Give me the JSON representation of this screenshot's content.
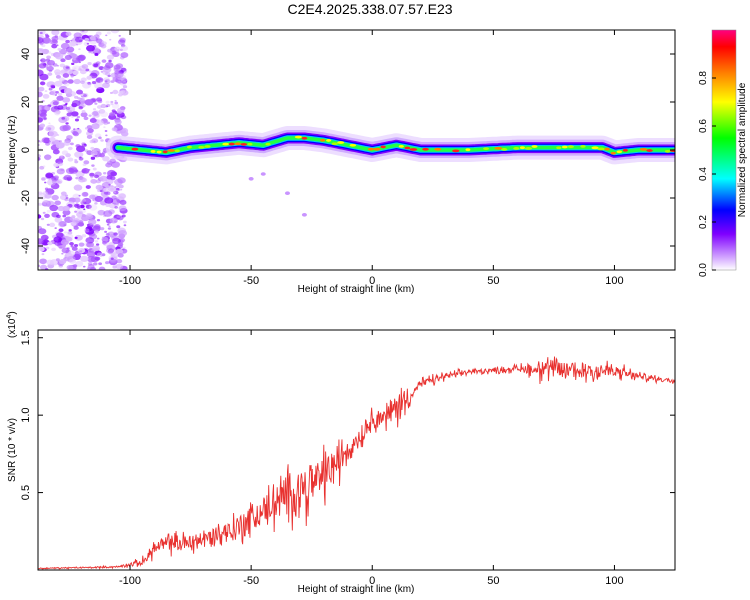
{
  "page_title": "C2E4.2025.338.07.57.E23",
  "chart_data": [
    {
      "type": "heatmap",
      "xlabel": "Height of straight line (km)",
      "ylabel": "Frequency (Hz)",
      "xlim": [
        -138,
        125
      ],
      "ylim": [
        -50,
        50
      ],
      "x_ticks": [
        -100,
        -50,
        0,
        50,
        100
      ],
      "x_tick_labels": [
        "-100",
        "-50",
        "0",
        "50",
        "100"
      ],
      "y_ticks": [
        -40,
        -20,
        0,
        20,
        40
      ],
      "y_tick_labels": [
        "-40",
        "-20",
        "0",
        "20",
        "40"
      ],
      "grid": false,
      "colorbar": {
        "label": "Normalized spectral amplitude",
        "range": [
          0,
          1
        ],
        "ticks": [
          0.0,
          0.2,
          0.4,
          0.6,
          0.8
        ],
        "tick_labels": [
          "0.0",
          "0.2",
          "0.4",
          "0.6",
          "0.8"
        ],
        "colors": [
          "#ffffff",
          "#cc99ff",
          "#7f00ff",
          "#0000ff",
          "#00ffff",
          "#00ff00",
          "#ffff00",
          "#ff8000",
          "#ff0000",
          "#ff0080"
        ]
      },
      "noise_region_x": [
        -138,
        -105
      ],
      "trace": {
        "x": [
          -105,
          -95,
          -85,
          -75,
          -65,
          -55,
          -45,
          -35,
          -28,
          -20,
          -10,
          0,
          10,
          20,
          40,
          60,
          80,
          95,
          100,
          110,
          125
        ],
        "y": [
          1,
          0,
          -1,
          1,
          2,
          3,
          2,
          5,
          5,
          4,
          2,
          0,
          2,
          0,
          0,
          1,
          1,
          1,
          -1,
          0,
          0
        ]
      }
    },
    {
      "type": "line",
      "xlabel": "Height of straight line (km)",
      "ylabel": "SNR (10 * v/v)",
      "y_multiplier": "(x10",
      "y_multiplier_exp": "4",
      "y_multiplier_close": ")",
      "xlim": [
        -138,
        125
      ],
      "ylim": [
        0,
        1.55
      ],
      "x_ticks": [
        -100,
        -50,
        0,
        50,
        100
      ],
      "x_tick_labels": [
        "-100",
        "-50",
        "0",
        "50",
        "100"
      ],
      "y_ticks": [
        0.5,
        1.0,
        1.5
      ],
      "y_tick_labels": [
        "0.5",
        "1.0",
        "1.5"
      ],
      "grid": false,
      "series": [
        {
          "color": "#e8312f",
          "envelope": {
            "x": [
              -138,
              -105,
              -95,
              -90,
              -85,
              -75,
              -65,
              -55,
              -45,
              -35,
              -25,
              -15,
              -5,
              0,
              5,
              10,
              15,
              20,
              30,
              40,
              50,
              60,
              70,
              80,
              90,
              100,
              110,
              120,
              125
            ],
            "mean": [
              0.01,
              0.02,
              0.05,
              0.14,
              0.17,
              0.18,
              0.22,
              0.28,
              0.38,
              0.48,
              0.55,
              0.68,
              0.86,
              0.98,
              0.98,
              1.05,
              1.12,
              1.2,
              1.25,
              1.28,
              1.29,
              1.3,
              1.3,
              1.29,
              1.29,
              1.28,
              1.25,
              1.23,
              1.22
            ],
            "amplitude": [
              0.005,
              0.01,
              0.04,
              0.08,
              0.1,
              0.1,
              0.12,
              0.15,
              0.2,
              0.25,
              0.28,
              0.22,
              0.12,
              0.1,
              0.12,
              0.18,
              0.12,
              0.06,
              0.04,
              0.03,
              0.03,
              0.04,
              0.12,
              0.12,
              0.12,
              0.1,
              0.04,
              0.03,
              0.03
            ]
          }
        }
      ]
    }
  ]
}
